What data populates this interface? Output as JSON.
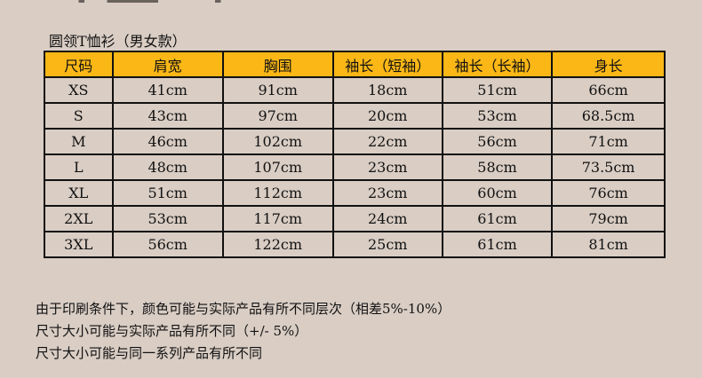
{
  "title": "圆领T恤衫（男女款）",
  "table": {
    "headers": [
      "尺码",
      "肩宽",
      "胸围",
      "袖长（短袖）",
      "袖长（长袖）",
      "身长"
    ],
    "rows": [
      [
        "XS",
        "41cm",
        "91cm",
        "18cm",
        "51cm",
        "66cm"
      ],
      [
        "S",
        "43cm",
        "97cm",
        "20cm",
        "53cm",
        "68.5cm"
      ],
      [
        "M",
        "46cm",
        "102cm",
        "22cm",
        "56cm",
        "71cm"
      ],
      [
        "L",
        "48cm",
        "107cm",
        "23cm",
        "58cm",
        "73.5cm"
      ],
      [
        "XL",
        "51cm",
        "112cm",
        "23cm",
        "60cm",
        "76cm"
      ],
      [
        "2XL",
        "53cm",
        "117cm",
        "24cm",
        "61cm",
        "79cm"
      ],
      [
        "3XL",
        "56cm",
        "122cm",
        "25cm",
        "61cm",
        "81cm"
      ]
    ]
  },
  "notes": [
    "由于印刷条件下，颜色可能与实际产品有所不同层次（相差5%-10%）",
    "尺寸大小可能与实际产品有所不同（+/- 5%）",
    "尺寸大小可能与同一系列产品有所不同"
  ],
  "colors": {
    "header": "#fab716",
    "background": "#d9cdc4"
  }
}
